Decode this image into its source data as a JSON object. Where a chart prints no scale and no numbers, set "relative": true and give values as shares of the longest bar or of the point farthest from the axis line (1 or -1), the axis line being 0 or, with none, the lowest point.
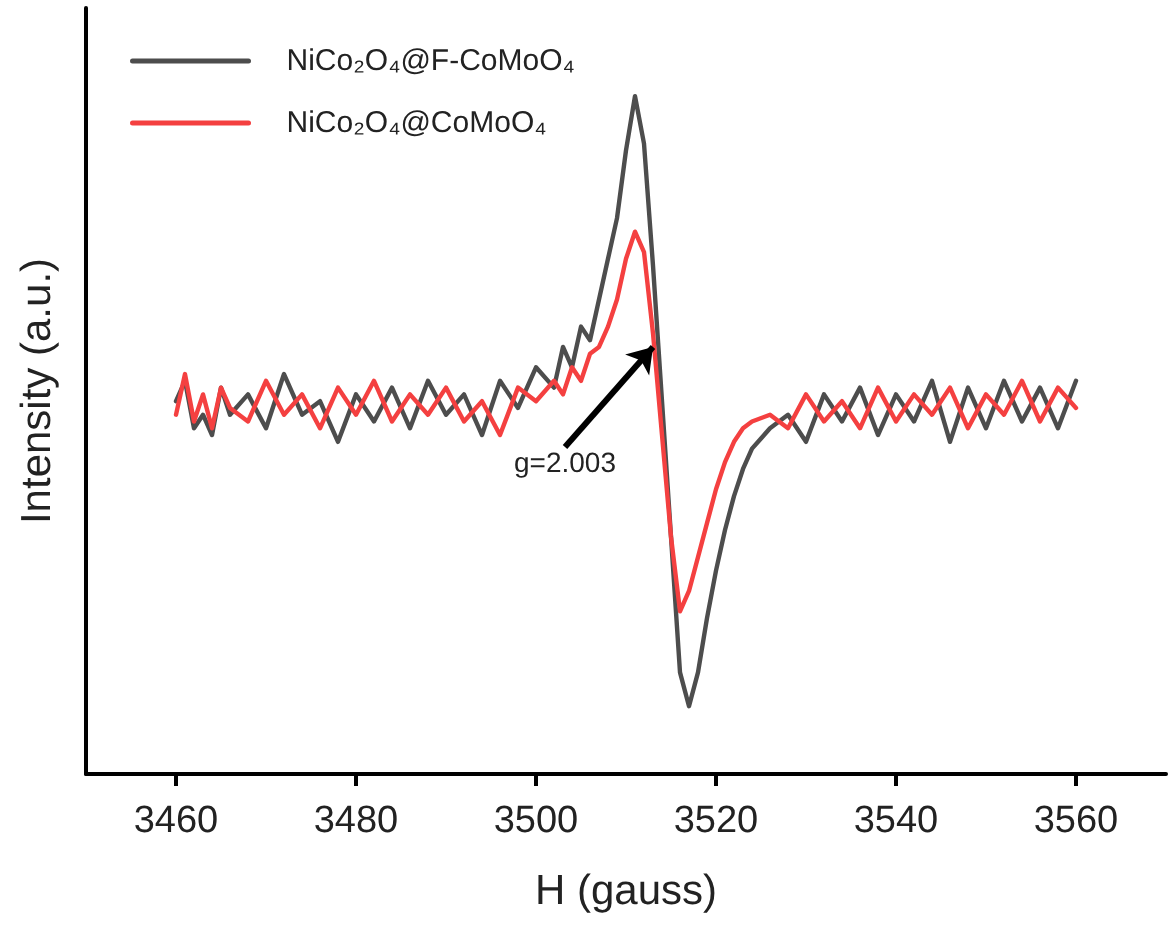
{
  "chart_data": {
    "type": "line",
    "xlabel": "H (gauss)",
    "ylabel": "Intensity (a.u.)",
    "relative": true,
    "xlim": [
      3450,
      3570
    ],
    "xticks": [
      3460,
      3480,
      3500,
      3520,
      3540,
      3560
    ],
    "grid": false,
    "legend": "top left",
    "marker": "none",
    "line_style": "solid",
    "annotations": [
      {
        "text": "g=2.003",
        "x": 3513,
        "y": 0.63
      }
    ],
    "series": [
      {
        "name": "NiCo₂O₄@F-CoMoO₄",
        "color": "#4d4d4d",
        "x": [
          3460,
          3461,
          3462,
          3463,
          3464,
          3465,
          3466,
          3468,
          3470,
          3472,
          3474,
          3476,
          3478,
          3480,
          3482,
          3484,
          3486,
          3488,
          3490,
          3492,
          3494,
          3496,
          3498,
          3500,
          3502,
          3503,
          3504,
          3505,
          3506,
          3507,
          3508,
          3509,
          3510,
          3511,
          3512,
          3513,
          3514,
          3515,
          3516,
          3517,
          3518,
          3519,
          3520,
          3521,
          3522,
          3523,
          3524,
          3526,
          3528,
          3530,
          3532,
          3534,
          3536,
          3538,
          3540,
          3542,
          3544,
          3546,
          3548,
          3550,
          3552,
          3554,
          3556,
          3558,
          3560
        ],
        "values": [
          0.55,
          0.58,
          0.51,
          0.53,
          0.5,
          0.57,
          0.53,
          0.56,
          0.51,
          0.59,
          0.53,
          0.55,
          0.49,
          0.56,
          0.52,
          0.57,
          0.51,
          0.58,
          0.53,
          0.56,
          0.5,
          0.58,
          0.54,
          0.6,
          0.57,
          0.63,
          0.6,
          0.66,
          0.64,
          0.7,
          0.76,
          0.82,
          0.92,
          1.0,
          0.93,
          0.75,
          0.55,
          0.35,
          0.15,
          0.1,
          0.15,
          0.23,
          0.3,
          0.36,
          0.41,
          0.45,
          0.48,
          0.51,
          0.53,
          0.49,
          0.56,
          0.52,
          0.57,
          0.5,
          0.56,
          0.52,
          0.58,
          0.49,
          0.57,
          0.51,
          0.58,
          0.52,
          0.57,
          0.51,
          0.58
        ]
      },
      {
        "name": "NiCo₂O₄@CoMoO₄",
        "color": "#f44040",
        "x": [
          3460,
          3461,
          3462,
          3463,
          3464,
          3465,
          3466,
          3468,
          3470,
          3472,
          3474,
          3476,
          3478,
          3480,
          3482,
          3484,
          3486,
          3488,
          3490,
          3492,
          3494,
          3496,
          3498,
          3500,
          3502,
          3503,
          3504,
          3505,
          3506,
          3507,
          3508,
          3509,
          3510,
          3511,
          3512,
          3513,
          3514,
          3515,
          3516,
          3517,
          3518,
          3519,
          3520,
          3521,
          3522,
          3523,
          3524,
          3526,
          3528,
          3530,
          3532,
          3534,
          3536,
          3538,
          3540,
          3542,
          3544,
          3546,
          3548,
          3550,
          3552,
          3554,
          3556,
          3558,
          3560
        ],
        "values": [
          0.53,
          0.59,
          0.52,
          0.56,
          0.51,
          0.57,
          0.54,
          0.52,
          0.58,
          0.53,
          0.56,
          0.51,
          0.57,
          0.53,
          0.58,
          0.52,
          0.56,
          0.53,
          0.57,
          0.52,
          0.55,
          0.5,
          0.57,
          0.55,
          0.58,
          0.56,
          0.6,
          0.58,
          0.62,
          0.63,
          0.66,
          0.7,
          0.76,
          0.8,
          0.77,
          0.65,
          0.5,
          0.35,
          0.24,
          0.27,
          0.32,
          0.37,
          0.42,
          0.46,
          0.49,
          0.51,
          0.52,
          0.53,
          0.51,
          0.56,
          0.52,
          0.55,
          0.51,
          0.57,
          0.52,
          0.56,
          0.53,
          0.57,
          0.51,
          0.56,
          0.53,
          0.58,
          0.52,
          0.57,
          0.54
        ]
      }
    ]
  }
}
